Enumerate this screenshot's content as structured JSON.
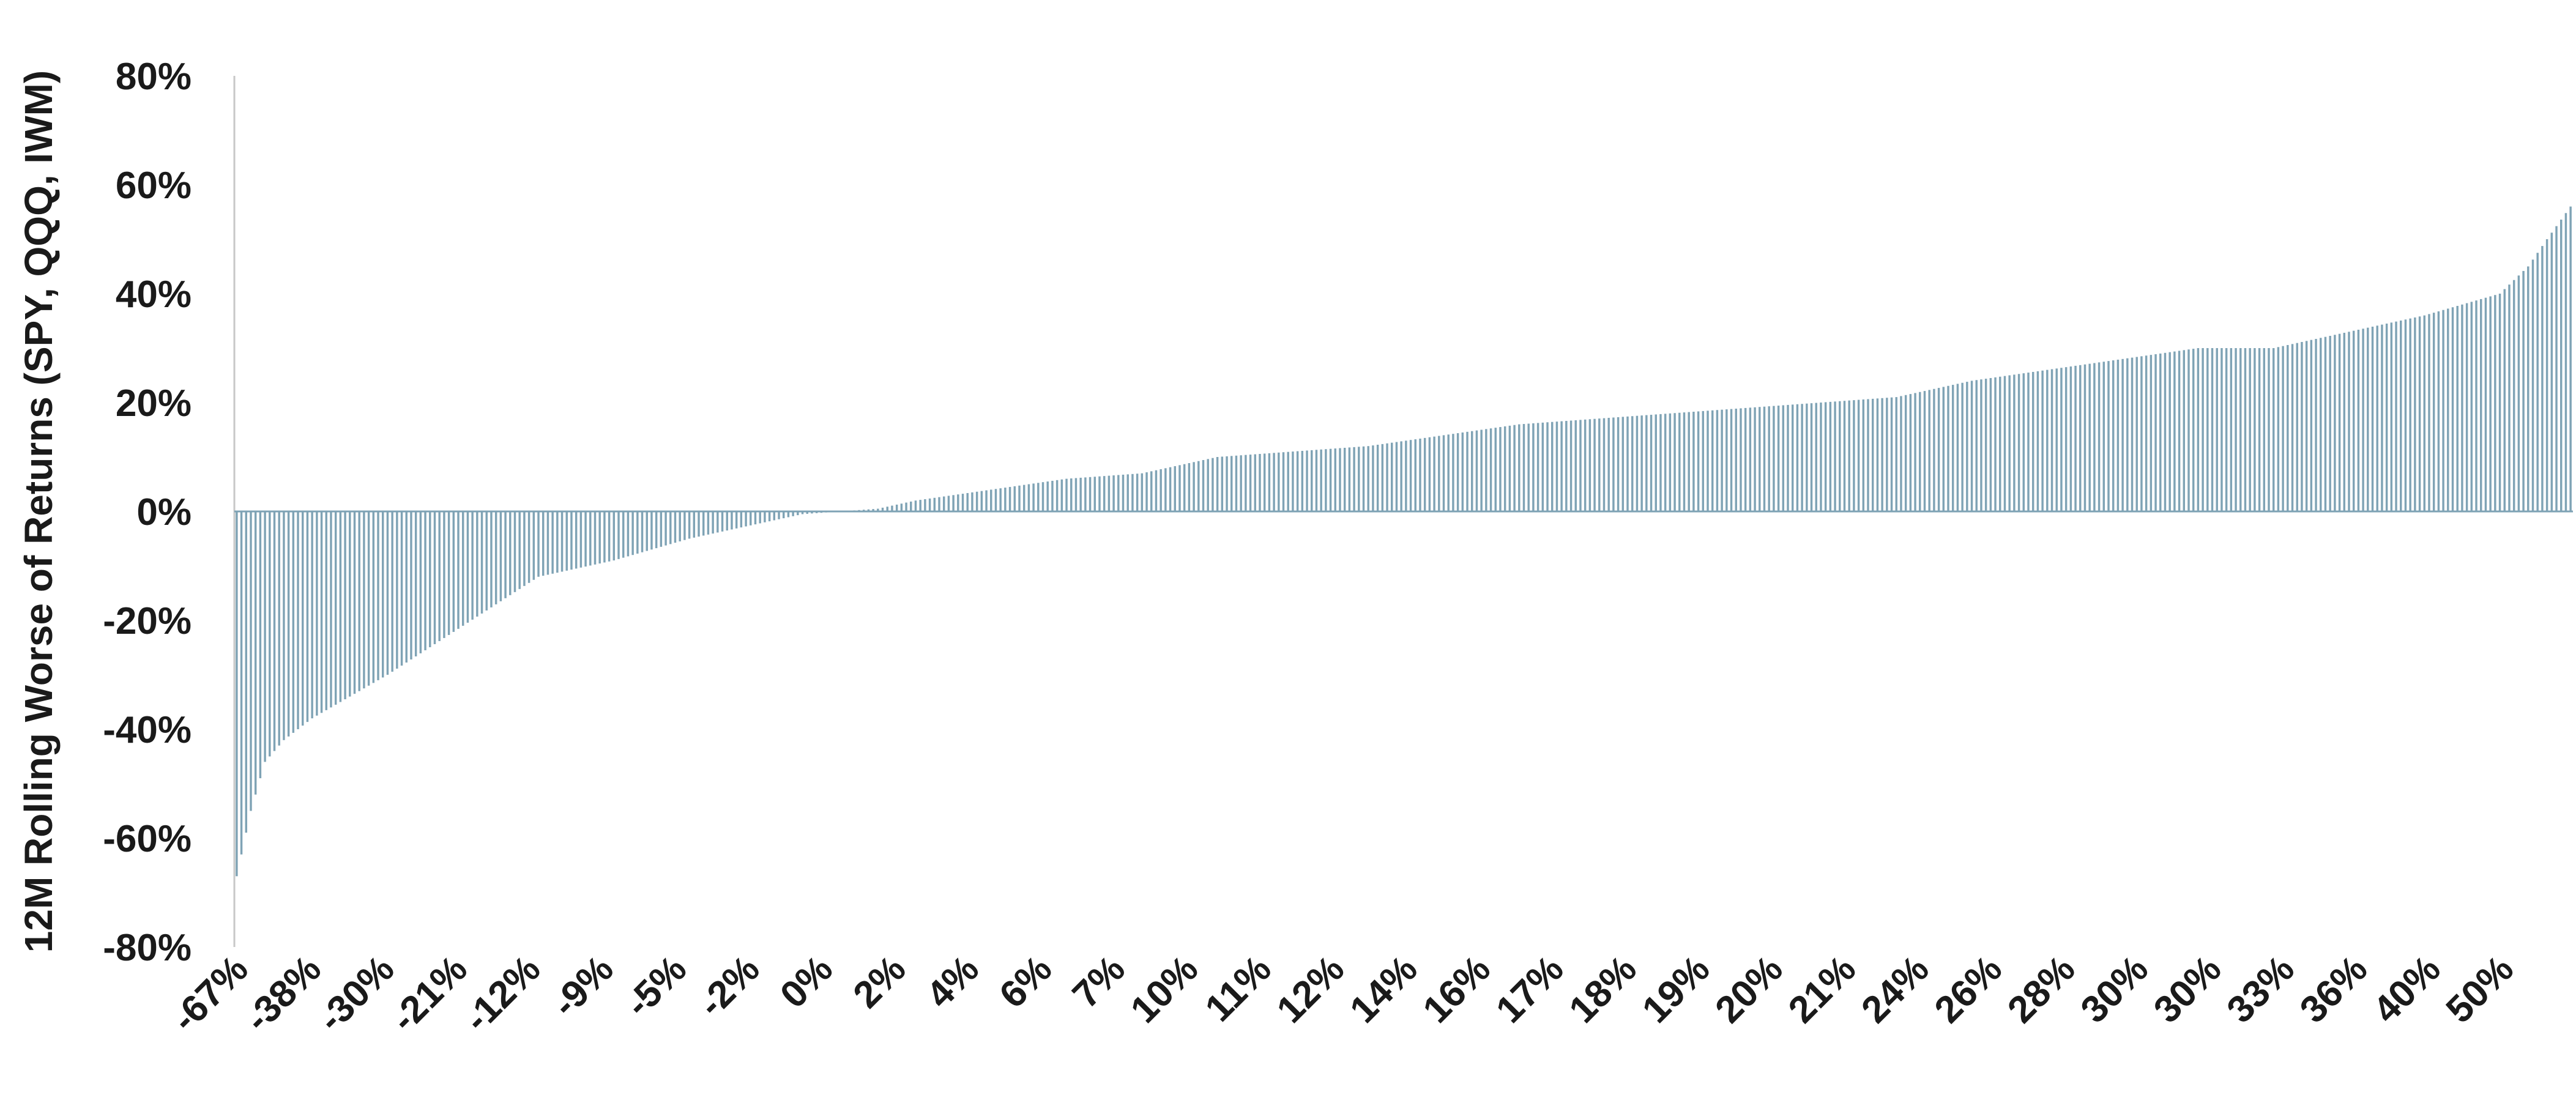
{
  "chart_data": {
    "type": "bar",
    "title": "",
    "xlabel": "",
    "ylabel": "12M Rolling Worse of Returns (SPY, QQQ, IWM)",
    "ylim": [
      -0.8,
      0.8
    ],
    "y_ticks": [
      "80%",
      "60%",
      "40%",
      "20%",
      "0%",
      "-20%",
      "-40%",
      "-60%",
      "-80%"
    ],
    "x_tick_labels": [
      "-67%",
      "-38%",
      "-30%",
      "-21%",
      "-12%",
      "-9%",
      "-5%",
      "-2%",
      "0%",
      "2%",
      "4%",
      "6%",
      "7%",
      "10%",
      "11%",
      "12%",
      "14%",
      "16%",
      "17%",
      "18%",
      "19%",
      "20%",
      "21%",
      "24%",
      "26%",
      "28%",
      "30%",
      "30%",
      "33%",
      "36%",
      "40%",
      "50%"
    ],
    "n_bars": 496,
    "sorted_anchor_values": [
      [
        0,
        -0.67
      ],
      [
        3,
        -0.55
      ],
      [
        6,
        -0.46
      ],
      [
        10,
        -0.42
      ],
      [
        16,
        -0.38
      ],
      [
        32,
        -0.3
      ],
      [
        48,
        -0.21
      ],
      [
        64,
        -0.12
      ],
      [
        80,
        -0.09
      ],
      [
        96,
        -0.05
      ],
      [
        112,
        -0.02
      ],
      [
        120,
        -0.005
      ],
      [
        128,
        0.0
      ],
      [
        136,
        0.005
      ],
      [
        144,
        0.02
      ],
      [
        160,
        0.04
      ],
      [
        176,
        0.06
      ],
      [
        192,
        0.07
      ],
      [
        208,
        0.1
      ],
      [
        224,
        0.11
      ],
      [
        240,
        0.12
      ],
      [
        256,
        0.14
      ],
      [
        272,
        0.16
      ],
      [
        288,
        0.17
      ],
      [
        304,
        0.18
      ],
      [
        320,
        0.19
      ],
      [
        336,
        0.2
      ],
      [
        352,
        0.21
      ],
      [
        368,
        0.24
      ],
      [
        384,
        0.26
      ],
      [
        400,
        0.28
      ],
      [
        416,
        0.3
      ],
      [
        432,
        0.3
      ],
      [
        448,
        0.33
      ],
      [
        464,
        0.36
      ],
      [
        480,
        0.4
      ],
      [
        486,
        0.45
      ],
      [
        490,
        0.5
      ],
      [
        495,
        0.56
      ]
    ],
    "bar_color": "#7fa3b5",
    "axis_color": "#c8c8c8",
    "grid": false,
    "legend": "none"
  }
}
